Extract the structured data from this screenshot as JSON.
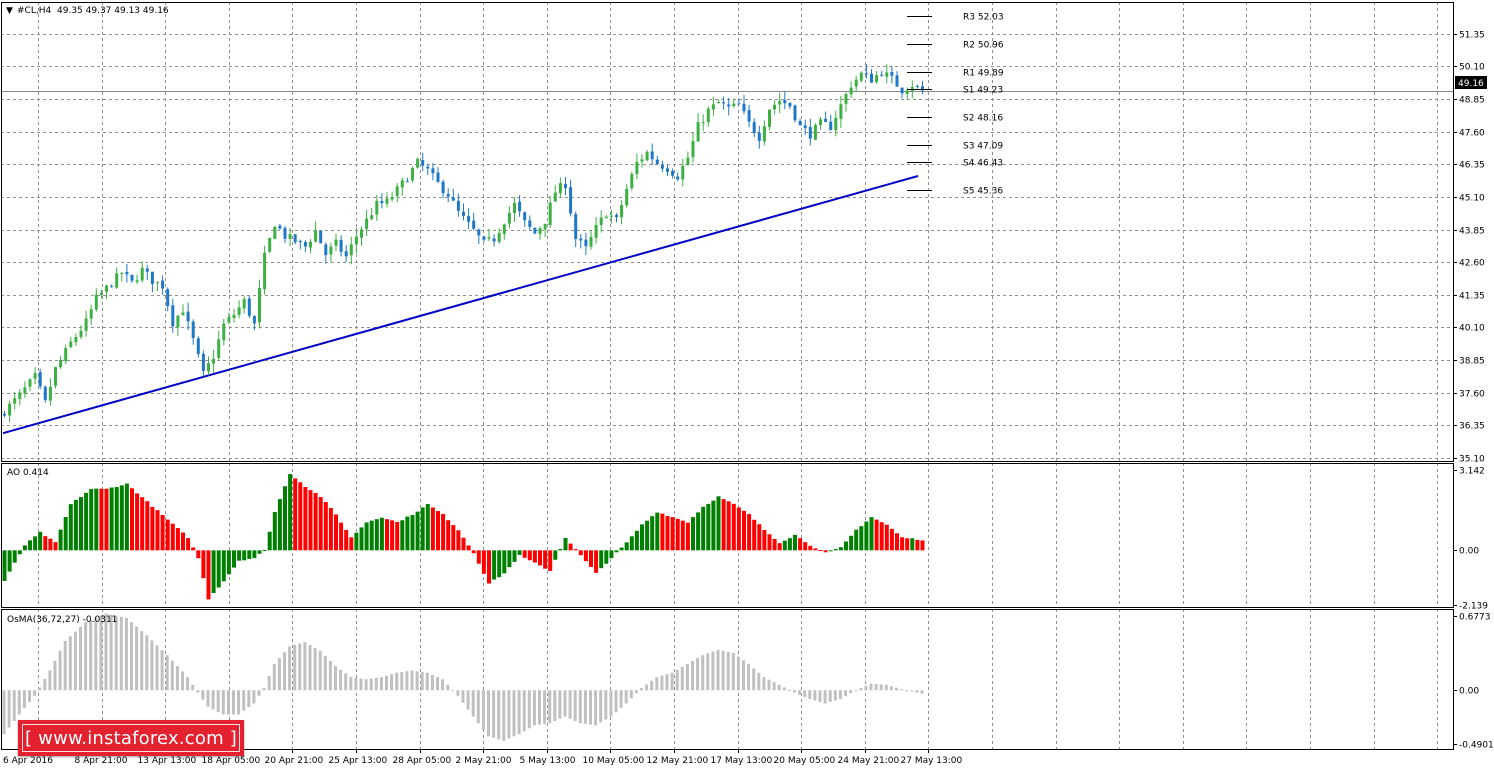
{
  "chart_data": [
    {
      "type": "candlestick",
      "title": "#CL,H4",
      "ohlc_header": "49.35 49.37 49.13 49.16",
      "y_ticks": [
        "51.35",
        "50.10",
        "48.85",
        "47.60",
        "46.35",
        "45.10",
        "43.85",
        "42.60",
        "41.35",
        "40.10",
        "38.85",
        "37.60",
        "36.35",
        "35.10"
      ],
      "ylim": [
        35.1,
        52.6
      ],
      "current_price": "49.16",
      "x_ticks": [
        "6 Apr 2016",
        "8 Apr 21:00",
        "13 Apr 13:00",
        "18 Apr 05:00",
        "20 Apr 21:00",
        "25 Apr 13:00",
        "28 Apr 05:00",
        "2 May 21:00",
        "5 May 13:00",
        "10 May 05:00",
        "12 May 21:00",
        "17 May 13:00",
        "20 May 05:00",
        "24 May 21:00",
        "27 May 13:00"
      ],
      "pivots": [
        {
          "label": "R3 52.03",
          "value": 52.03
        },
        {
          "label": "R2 50.96",
          "value": 50.96
        },
        {
          "label": "R1 49.89",
          "value": 49.89
        },
        {
          "label": "S1 49.23",
          "value": 49.23
        },
        {
          "label": "S2 48.16",
          "value": 48.16
        },
        {
          "label": "S3 47.09",
          "value": 47.09
        },
        {
          "label": "S4 46.43",
          "value": 46.43
        },
        {
          "label": "S5 45.36",
          "value": 45.36
        }
      ],
      "trendline": {
        "start": 36.05,
        "end": 45.9
      },
      "path": [
        [
          0,
          36.9
        ],
        [
          3,
          37.5
        ],
        [
          6,
          38.2
        ],
        [
          8,
          37.2
        ],
        [
          10,
          38.5
        ],
        [
          13,
          39.5
        ],
        [
          16,
          40.3
        ],
        [
          18,
          41.2
        ],
        [
          20,
          41.6
        ],
        [
          23,
          42.2
        ],
        [
          25,
          41.8
        ],
        [
          27,
          42.3
        ],
        [
          29,
          41.9
        ],
        [
          31,
          41.7
        ],
        [
          33,
          40.3
        ],
        [
          35,
          40.8
        ],
        [
          37,
          39.6
        ],
        [
          39,
          38.3
        ],
        [
          41,
          39.0
        ],
        [
          43,
          40.2
        ],
        [
          45,
          40.6
        ],
        [
          47,
          41.1
        ],
        [
          49,
          40.2
        ],
        [
          51,
          42.8
        ],
        [
          53,
          44.1
        ],
        [
          55,
          43.6
        ],
        [
          57,
          43.4
        ],
        [
          59,
          43.2
        ],
        [
          61,
          43.8
        ],
        [
          63,
          42.9
        ],
        [
          65,
          43.3
        ],
        [
          67,
          42.8
        ],
        [
          69,
          43.6
        ],
        [
          71,
          44.2
        ],
        [
          73,
          44.8
        ],
        [
          75,
          44.9
        ],
        [
          78,
          45.6
        ],
        [
          81,
          46.4
        ],
        [
          83,
          46.1
        ],
        [
          85,
          45.6
        ],
        [
          87,
          45.2
        ],
        [
          89,
          44.5
        ],
        [
          92,
          43.8
        ],
        [
          94,
          43.3
        ],
        [
          96,
          43.5
        ],
        [
          98,
          44.2
        ],
        [
          100,
          44.8
        ],
        [
          102,
          44.1
        ],
        [
          104,
          43.7
        ],
        [
          106,
          44.2
        ],
        [
          108,
          45.3
        ],
        [
          110,
          45.6
        ],
        [
          112,
          43.5
        ],
        [
          114,
          43.1
        ],
        [
          116,
          43.9
        ],
        [
          118,
          44.5
        ],
        [
          120,
          44.2
        ],
        [
          122,
          45.4
        ],
        [
          124,
          46.4
        ],
        [
          126,
          46.8
        ],
        [
          128,
          46.4
        ],
        [
          130,
          46.2
        ],
        [
          132,
          45.9
        ],
        [
          134,
          46.6
        ],
        [
          136,
          47.8
        ],
        [
          138,
          48.4
        ],
        [
          140,
          48.7
        ],
        [
          142,
          48.5
        ],
        [
          144,
          48.6
        ],
        [
          146,
          47.9
        ],
        [
          148,
          47.4
        ],
        [
          150,
          48.5
        ],
        [
          152,
          48.8
        ],
        [
          154,
          48.6
        ],
        [
          156,
          47.8
        ],
        [
          158,
          47.5
        ],
        [
          160,
          47.9
        ],
        [
          162,
          47.8
        ],
        [
          164,
          48.6
        ],
        [
          166,
          49.4
        ],
        [
          168,
          49.8
        ],
        [
          170,
          49.6
        ],
        [
          172,
          49.9
        ],
        [
          174,
          49.6
        ],
        [
          176,
          49.2
        ],
        [
          178,
          49.4
        ],
        [
          180,
          49.16
        ]
      ]
    },
    {
      "type": "bar",
      "title": "AO 0.414",
      "y_ticks": [
        "3.142",
        "0.00",
        "-2.139"
      ],
      "ylim": [
        -2.139,
        3.142
      ],
      "up_color": "#008000",
      "down_color": "#ff0000",
      "path": [
        [
          0,
          -1.2
        ],
        [
          4,
          0.2
        ],
        [
          7,
          0.7
        ],
        [
          10,
          0.3
        ],
        [
          13,
          1.8
        ],
        [
          17,
          2.4
        ],
        [
          20,
          2.4
        ],
        [
          24,
          2.6
        ],
        [
          28,
          1.9
        ],
        [
          32,
          1.2
        ],
        [
          36,
          0.5
        ],
        [
          38,
          -0.3
        ],
        [
          40,
          -1.9
        ],
        [
          43,
          -1.2
        ],
        [
          46,
          -0.4
        ],
        [
          49,
          -0.3
        ],
        [
          51,
          0.0
        ],
        [
          53,
          1.5
        ],
        [
          56,
          3.0
        ],
        [
          59,
          2.5
        ],
        [
          62,
          2.1
        ],
        [
          65,
          1.4
        ],
        [
          68,
          0.5
        ],
        [
          71,
          1.1
        ],
        [
          74,
          1.3
        ],
        [
          77,
          1.1
        ],
        [
          80,
          1.4
        ],
        [
          83,
          1.8
        ],
        [
          86,
          1.4
        ],
        [
          89,
          0.8
        ],
        [
          92,
          -0.1
        ],
        [
          95,
          -1.3
        ],
        [
          98,
          -0.9
        ],
        [
          101,
          -0.2
        ],
        [
          104,
          -0.5
        ],
        [
          107,
          -0.8
        ],
        [
          110,
          0.5
        ],
        [
          113,
          -0.2
        ],
        [
          116,
          -0.9
        ],
        [
          119,
          -0.3
        ],
        [
          122,
          0.3
        ],
        [
          125,
          1.0
        ],
        [
          128,
          1.5
        ],
        [
          131,
          1.3
        ],
        [
          134,
          1.1
        ],
        [
          137,
          1.7
        ],
        [
          140,
          2.1
        ],
        [
          143,
          1.8
        ],
        [
          146,
          1.4
        ],
        [
          149,
          0.8
        ],
        [
          152,
          0.3
        ],
        [
          155,
          0.6
        ],
        [
          158,
          0.2
        ],
        [
          161,
          -0.1
        ],
        [
          164,
          0.1
        ],
        [
          167,
          0.8
        ],
        [
          170,
          1.3
        ],
        [
          173,
          1.0
        ],
        [
          176,
          0.5
        ],
        [
          180,
          0.41
        ]
      ]
    },
    {
      "type": "bar",
      "title": "OsMA(36,72,27) -0.0311",
      "y_ticks": [
        "0.6773",
        "0.00",
        "-0.4901"
      ],
      "ylim": [
        -0.4901,
        0.6773
      ],
      "bar_color": "#c0c0c0",
      "path": [
        [
          0,
          -0.4
        ],
        [
          3,
          -0.22
        ],
        [
          6,
          -0.05
        ],
        [
          9,
          0.18
        ],
        [
          12,
          0.45
        ],
        [
          16,
          0.62
        ],
        [
          20,
          0.7
        ],
        [
          24,
          0.66
        ],
        [
          28,
          0.5
        ],
        [
          32,
          0.32
        ],
        [
          36,
          0.12
        ],
        [
          38,
          -0.02
        ],
        [
          40,
          -0.15
        ],
        [
          43,
          -0.22
        ],
        [
          46,
          -0.22
        ],
        [
          49,
          -0.12
        ],
        [
          51,
          0.02
        ],
        [
          53,
          0.24
        ],
        [
          56,
          0.4
        ],
        [
          59,
          0.44
        ],
        [
          62,
          0.36
        ],
        [
          65,
          0.22
        ],
        [
          68,
          0.12
        ],
        [
          71,
          0.1
        ],
        [
          74,
          0.12
        ],
        [
          77,
          0.16
        ],
        [
          80,
          0.18
        ],
        [
          83,
          0.16
        ],
        [
          86,
          0.1
        ],
        [
          89,
          -0.05
        ],
        [
          92,
          -0.24
        ],
        [
          95,
          -0.42
        ],
        [
          98,
          -0.46
        ],
        [
          101,
          -0.4
        ],
        [
          104,
          -0.32
        ],
        [
          107,
          -0.3
        ],
        [
          110,
          -0.24
        ],
        [
          113,
          -0.3
        ],
        [
          116,
          -0.32
        ],
        [
          119,
          -0.24
        ],
        [
          122,
          -0.12
        ],
        [
          125,
          0.02
        ],
        [
          128,
          0.12
        ],
        [
          131,
          0.16
        ],
        [
          134,
          0.24
        ],
        [
          137,
          0.32
        ],
        [
          140,
          0.37
        ],
        [
          143,
          0.34
        ],
        [
          146,
          0.24
        ],
        [
          149,
          0.12
        ],
        [
          152,
          0.05
        ],
        [
          155,
          -0.02
        ],
        [
          158,
          -0.08
        ],
        [
          161,
          -0.12
        ],
        [
          164,
          -0.08
        ],
        [
          167,
          0.0
        ],
        [
          170,
          0.06
        ],
        [
          173,
          0.05
        ],
        [
          176,
          0.01
        ],
        [
          180,
          -0.03
        ]
      ]
    }
  ],
  "watermark": "[  www.instaforex.com  ]"
}
